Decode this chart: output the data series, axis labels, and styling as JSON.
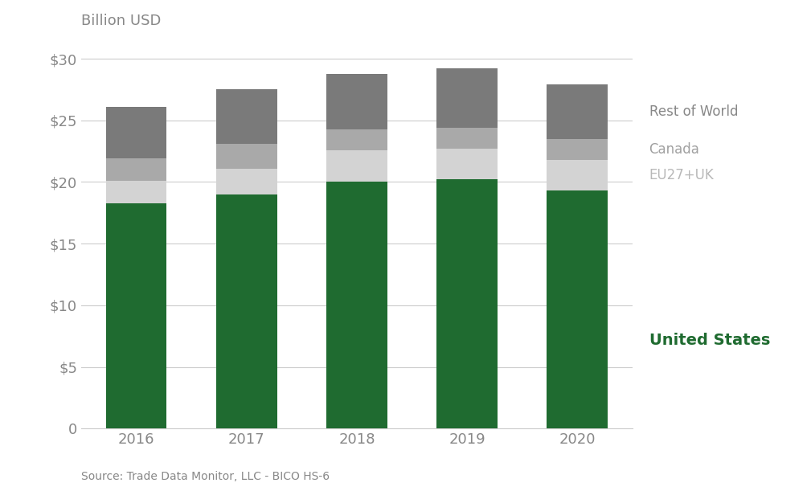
{
  "years": [
    "2016",
    "2017",
    "2018",
    "2019",
    "2020"
  ],
  "us_values": [
    18.3,
    19.0,
    20.0,
    20.2,
    19.3
  ],
  "eu27uk_values": [
    1.8,
    2.1,
    2.6,
    2.5,
    2.5
  ],
  "canada_values": [
    1.8,
    2.0,
    1.7,
    1.7,
    1.7
  ],
  "row_values": [
    4.2,
    4.4,
    4.5,
    4.8,
    4.4
  ],
  "colors": {
    "us": "#1f6b30",
    "eu27uk": "#d3d3d3",
    "canada": "#a9a9a9",
    "row": "#7a7a7a"
  },
  "yticks": [
    0,
    5,
    10,
    15,
    20,
    25,
    30
  ],
  "ytick_labels": [
    "0",
    "$5",
    "$10",
    "$15",
    "$20",
    "$25",
    "$30"
  ],
  "ylim": [
    0,
    32
  ],
  "source_text": "Source: Trade Data Monitor, LLC - BICO HS-6",
  "ylabel": "Billion USD",
  "legend_labels": {
    "row": "Rest of World",
    "canada": "Canada",
    "eu27uk": "EU27+UK",
    "us": "United States"
  },
  "background_color": "#ffffff",
  "bar_width": 0.55
}
